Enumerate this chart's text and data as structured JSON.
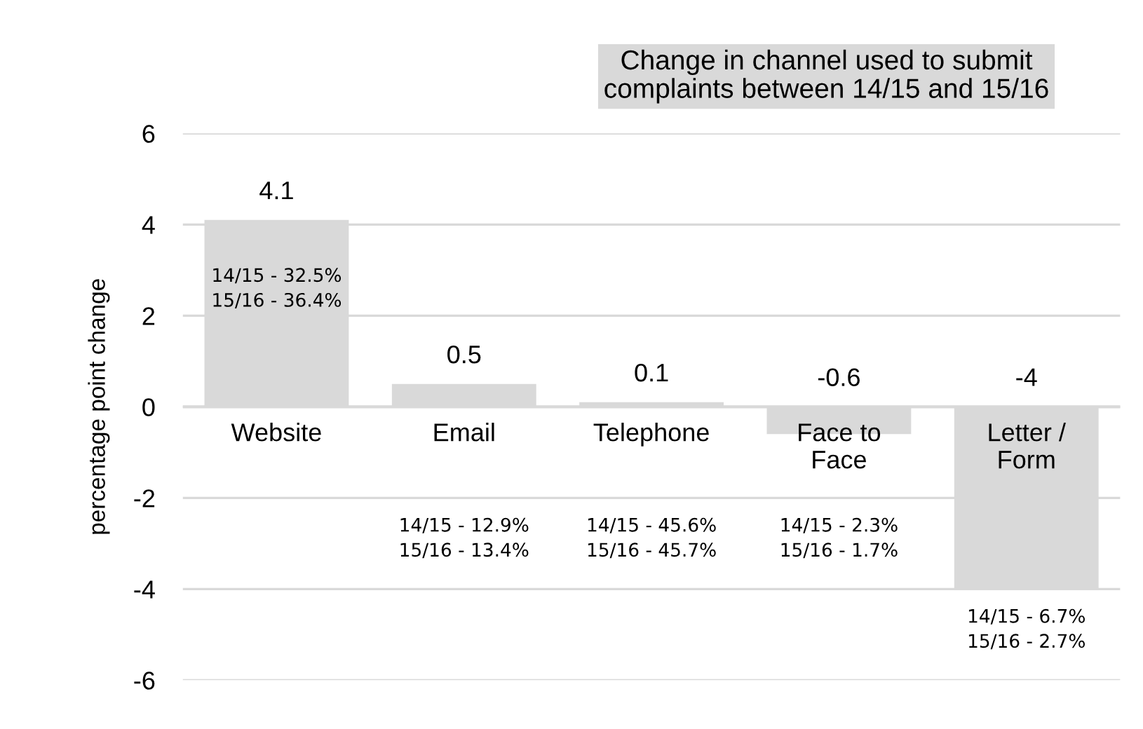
{
  "chart_data": {
    "type": "bar",
    "title": "Change in channel used to submit\ncomplaints between 14/15 and 15/16",
    "ylabel": "percentage point change",
    "categories": [
      "Website",
      "Email",
      "Telephone",
      "Face to\nFace",
      "Letter /\nForm"
    ],
    "values": [
      4.1,
      0.5,
      0.1,
      -0.6,
      -4
    ],
    "color": "#d9d9d9",
    "data_labels": true,
    "ylim": [
      -6,
      6
    ],
    "yticks": [
      -6,
      -4,
      -2,
      0,
      2,
      4,
      6
    ],
    "grid": "y",
    "annotations": [
      "14/15 - 32.5%\n15/16 - 36.4%",
      "14/15 - 12.9%\n15/16 - 13.4%",
      "14/15 - 45.6%\n15/16 - 45.7%",
      "14/15 - 2.3%\n15/16 - 1.7%",
      "14/15 - 6.7%\n15/16 - 2.7%"
    ]
  }
}
